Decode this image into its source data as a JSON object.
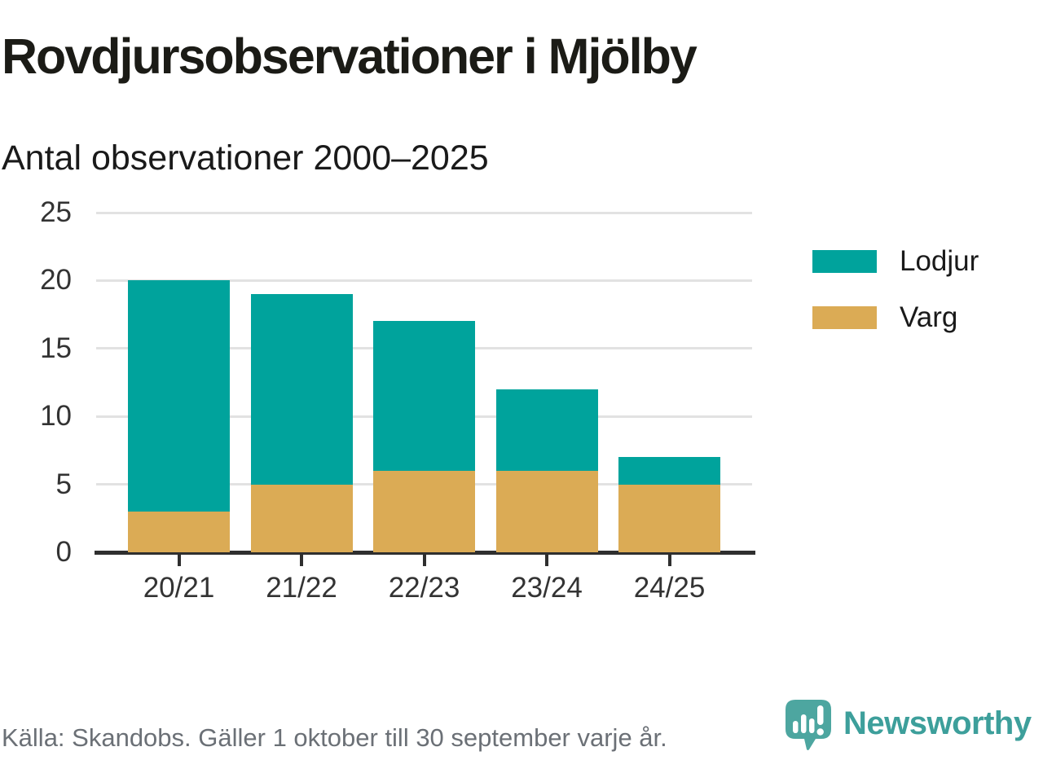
{
  "header": {
    "title": "Rovdjursobservationer i Mjölby",
    "subtitle": "Antal observationer 2000–2025"
  },
  "chart_data": {
    "type": "bar",
    "stacked": true,
    "title": "Rovdjursobservationer i Mjölby",
    "subtitle": "Antal observationer 2000–2025",
    "categories": [
      "20/21",
      "21/22",
      "22/23",
      "23/24",
      "24/25"
    ],
    "series": [
      {
        "name": "Lodjur",
        "color": "#00a39c",
        "values": [
          17,
          14,
          11,
          6,
          2
        ]
      },
      {
        "name": "Varg",
        "color": "#dbab55",
        "values": [
          3,
          5,
          6,
          6,
          5
        ]
      }
    ],
    "stack_order_bottom_to_top": [
      "Varg",
      "Lodjur"
    ],
    "totals": [
      20,
      19,
      17,
      12,
      7
    ],
    "xlabel": "",
    "ylabel": "",
    "ylim": [
      0,
      25
    ],
    "yticks": [
      0,
      5,
      10,
      15,
      20,
      25
    ],
    "grid": true,
    "legend_position": "right"
  },
  "footer": {
    "source": "Källa: Skandobs. Gäller 1 oktober till 30 september varje år.",
    "brand": "Newsworthy"
  },
  "colors": {
    "lodjur": "#00a39c",
    "varg": "#dbab55",
    "grid": "#e2e2e2",
    "axis": "#2f2f2f",
    "title_text": "#1b1b16",
    "label_text": "#333333",
    "source_text": "#6b7076",
    "brand_badge": "#4da6a0",
    "brand_text": "#3d9f9b"
  }
}
